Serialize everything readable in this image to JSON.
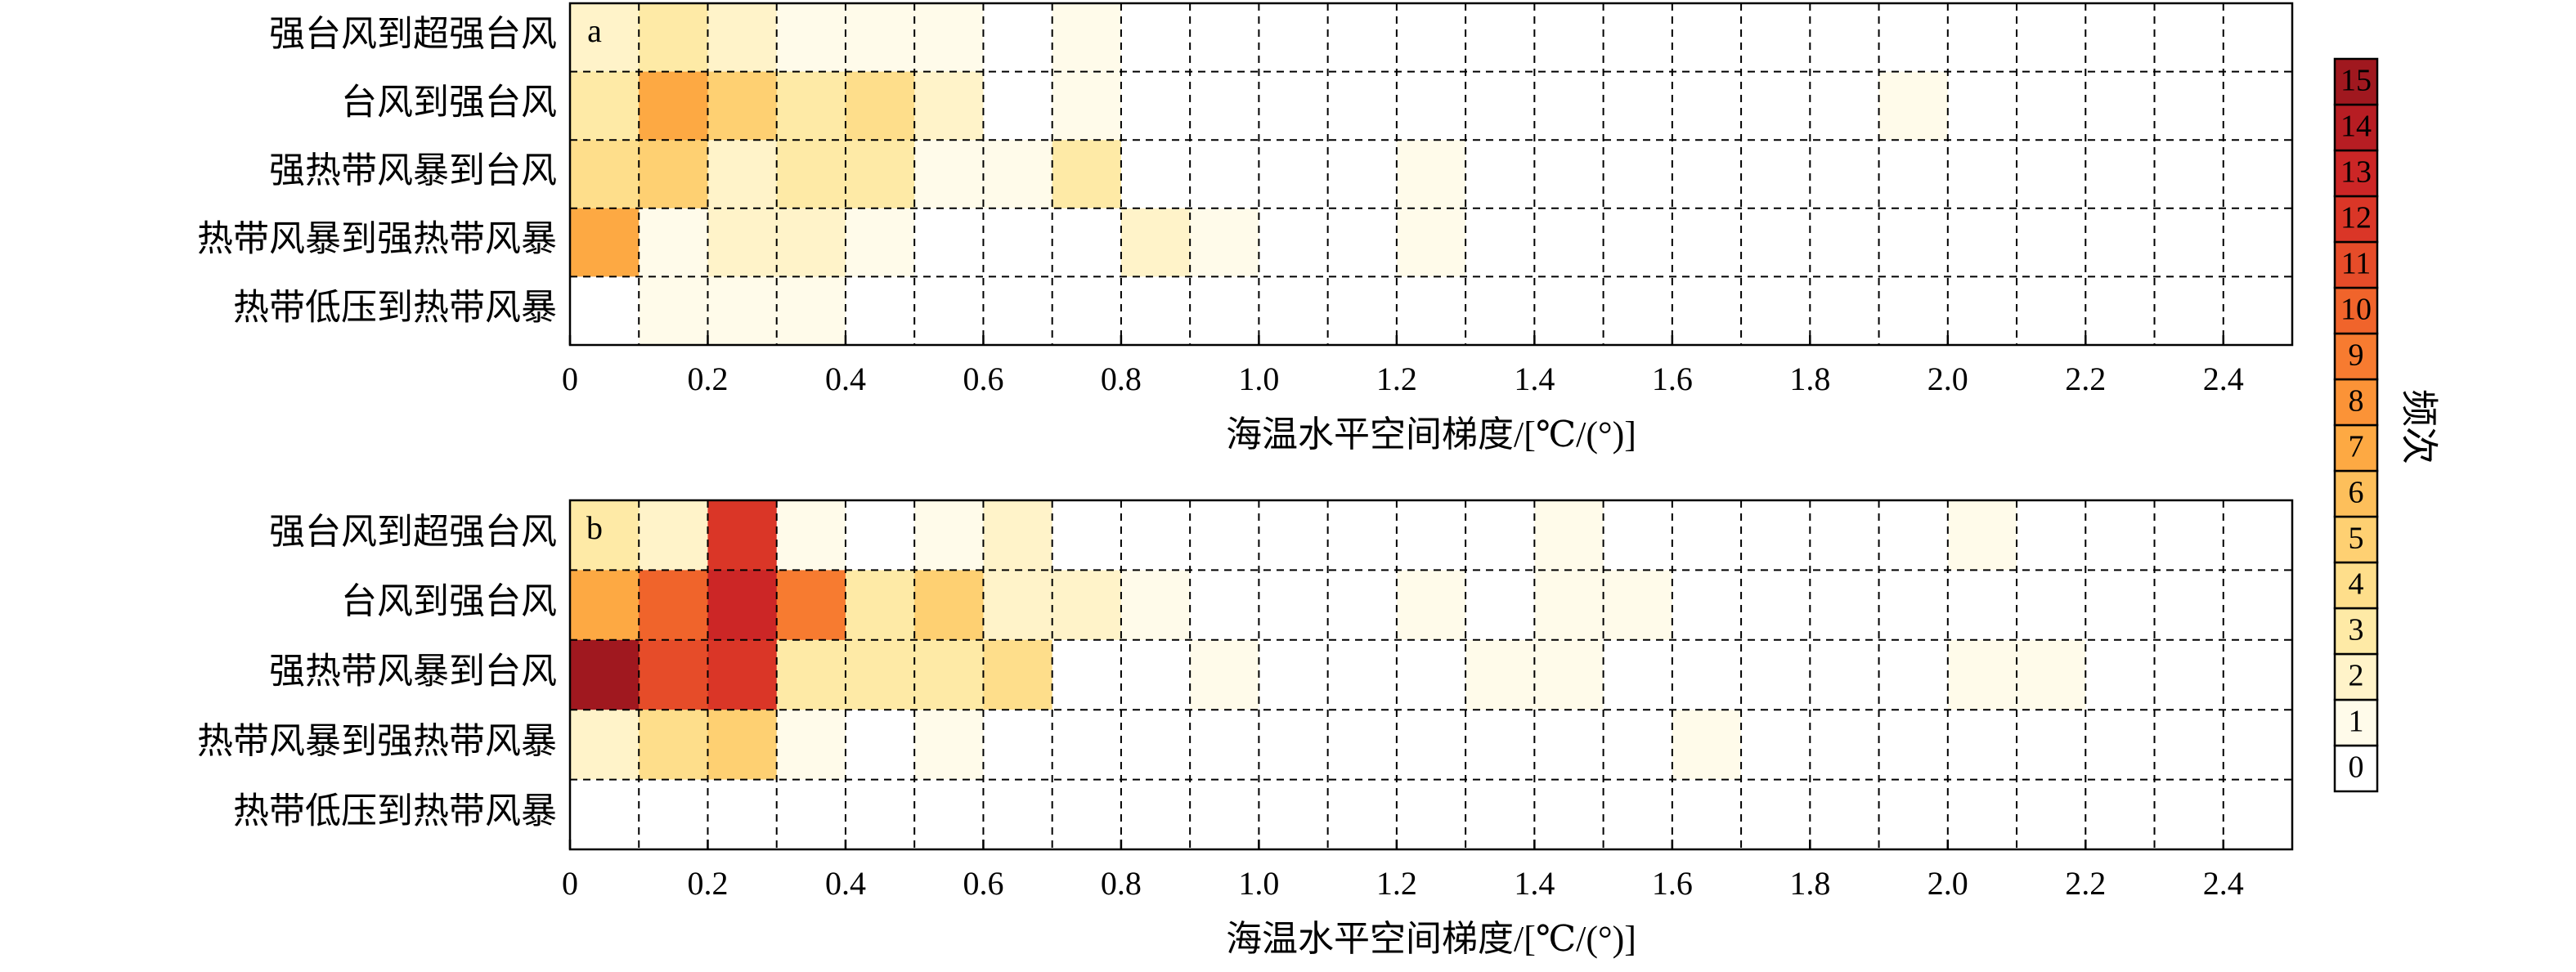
{
  "chart_data": [
    {
      "type": "heatmap",
      "label": "a",
      "categories": [
        "强台风到超强台风",
        "台风到强台风",
        "强热带风暴到台风",
        "热带风暴到强热带风暴",
        "热带低压到热带风暴"
      ],
      "values": [
        [
          2,
          3,
          2,
          1,
          1,
          1,
          0,
          1,
          0,
          0,
          0,
          0,
          0,
          0,
          0,
          0,
          0,
          0,
          0,
          0,
          0,
          0,
          0,
          0,
          0
        ],
        [
          3,
          7,
          5,
          3,
          4,
          2,
          0,
          1,
          0,
          0,
          0,
          0,
          0,
          0,
          0,
          0,
          0,
          0,
          0,
          1,
          0,
          0,
          0,
          0,
          0
        ],
        [
          4,
          5,
          2,
          3,
          3,
          1,
          1,
          3,
          0,
          0,
          0,
          0,
          1,
          0,
          0,
          0,
          0,
          0,
          0,
          0,
          0,
          0,
          0,
          0,
          0
        ],
        [
          7,
          1,
          2,
          2,
          1,
          0,
          0,
          0,
          2,
          1,
          0,
          0,
          1,
          0,
          0,
          0,
          0,
          0,
          0,
          0,
          0,
          0,
          0,
          0,
          0
        ],
        [
          0,
          1,
          1,
          1,
          0,
          0,
          0,
          0,
          0,
          0,
          0,
          0,
          0,
          0,
          0,
          0,
          0,
          0,
          0,
          0,
          0,
          0,
          0,
          0,
          0
        ]
      ],
      "xlim": [
        0,
        2.5
      ],
      "xticks": [
        0,
        0.2,
        0.4,
        0.6,
        0.8,
        {
          "value": 1,
          "label": "1.0"
        },
        1.2,
        1.4,
        1.6,
        1.8,
        {
          "value": 2,
          "label": "2.0"
        },
        2.2,
        2.4
      ],
      "xlabel": "海温水平空间梯度/[℃/(°)]"
    },
    {
      "type": "heatmap",
      "label": "b",
      "categories": [
        "强台风到超强台风",
        "台风到强台风",
        "强热带风暴到台风",
        "热带风暴到强热带风暴",
        "热带低压到热带风暴"
      ],
      "values": [
        [
          3,
          2,
          12,
          1,
          0,
          1,
          2,
          0,
          0,
          0,
          0,
          0,
          0,
          0,
          1,
          0,
          0,
          0,
          0,
          0,
          1,
          0,
          0,
          0,
          0
        ],
        [
          7,
          10,
          13,
          9,
          3,
          5,
          2,
          2,
          1,
          0,
          0,
          0,
          1,
          0,
          1,
          1,
          0,
          0,
          0,
          0,
          0,
          0,
          0,
          0,
          0
        ],
        [
          15,
          11,
          12,
          3,
          3,
          3,
          4,
          0,
          0,
          1,
          0,
          0,
          0,
          1,
          1,
          0,
          0,
          0,
          0,
          0,
          1,
          1,
          0,
          0,
          0
        ],
        [
          2,
          4,
          5,
          1,
          0,
          1,
          0,
          0,
          0,
          0,
          0,
          0,
          0,
          0,
          0,
          0,
          1,
          0,
          0,
          0,
          0,
          0,
          0,
          0,
          0
        ],
        [
          0,
          0,
          0,
          0,
          0,
          0,
          0,
          0,
          0,
          0,
          0,
          0,
          0,
          0,
          0,
          0,
          0,
          0,
          0,
          0,
          0,
          0,
          0,
          0,
          0
        ]
      ],
      "xlim": [
        0,
        2.5
      ],
      "xticks": [
        0,
        0.2,
        0.4,
        0.6,
        0.8,
        {
          "value": 1,
          "label": "1.0"
        },
        1.2,
        1.4,
        1.6,
        1.8,
        {
          "value": 2,
          "label": "2.0"
        },
        2.2,
        2.4
      ],
      "xlabel": "海温水平空间梯度/[℃/(°)]"
    }
  ],
  "colorbar": {
    "label": "频次",
    "ticks": [
      0,
      1,
      2,
      3,
      4,
      5,
      6,
      7,
      8,
      9,
      10,
      11,
      12,
      13,
      14,
      15
    ],
    "colors": [
      "#ffffff",
      "#fffbea",
      "#fff3c9",
      "#feeaa6",
      "#fede8b",
      "#fed072",
      "#fdbf5b",
      "#fda943",
      "#fb9337",
      "#f77b30",
      "#f0642b",
      "#e64c29",
      "#da3627",
      "#cc2626",
      "#b71d23",
      "#a0181f"
    ]
  }
}
